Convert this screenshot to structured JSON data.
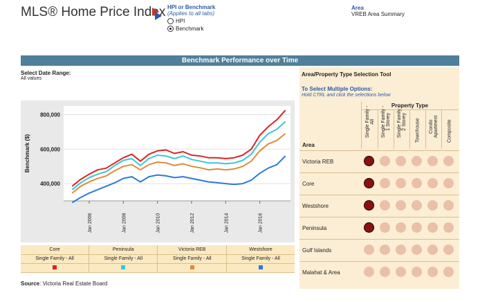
{
  "header": {
    "title": "MLS® Home Price Index",
    "hpi_label": "HPI or Benchmark",
    "hpi_sub": "(Applies to all tabs)",
    "options": [
      {
        "label": "HPI",
        "selected": false
      },
      {
        "label": "Benchmark",
        "selected": true
      }
    ],
    "area_label": "Area",
    "area_value": "VREB Area Summary"
  },
  "banner": "Benchmark Performance over Time",
  "date_range": {
    "label": "Select Date Range:",
    "value": "All values"
  },
  "chart_data": {
    "type": "line",
    "ylabel": "Benchmark ($)",
    "yticks": [
      "400,000",
      "600,000",
      "800,000"
    ],
    "ylim": [
      300000,
      850000
    ],
    "xticks": [
      "Jan 2006",
      "Jan 2008",
      "Jan 2010",
      "Jan 2012",
      "Jan 2014",
      "Jan 2016"
    ],
    "xlim": [
      2004.5,
      2017.8
    ],
    "x": [
      2005.0,
      2005.5,
      2006.0,
      2006.5,
      2007.0,
      2007.5,
      2008.0,
      2008.5,
      2009.0,
      2009.5,
      2010.0,
      2010.5,
      2011.0,
      2011.5,
      2012.0,
      2012.5,
      2013.0,
      2013.5,
      2014.0,
      2014.5,
      2015.0,
      2015.5,
      2016.0,
      2016.5,
      2017.0,
      2017.5
    ],
    "series": [
      {
        "name": "Core",
        "subtitle": "Single Family - All",
        "color": "#e02020",
        "values": [
          385000,
          425000,
          455000,
          480000,
          490000,
          520000,
          550000,
          570000,
          530000,
          570000,
          590000,
          595000,
          575000,
          585000,
          565000,
          560000,
          550000,
          550000,
          545000,
          550000,
          565000,
          600000,
          680000,
          730000,
          770000,
          825000
        ]
      },
      {
        "name": "Peninsula",
        "subtitle": "Single Family - All",
        "color": "#36c8d8",
        "values": [
          365000,
          405000,
          435000,
          455000,
          470000,
          505000,
          535000,
          545000,
          505000,
          545000,
          565000,
          560000,
          545000,
          560000,
          540000,
          530000,
          520000,
          520000,
          515000,
          520000,
          535000,
          570000,
          640000,
          690000,
          715000,
          760000
        ]
      },
      {
        "name": "Victoria REB",
        "subtitle": "Single Family - All",
        "color": "#e08a3a",
        "values": [
          345000,
          385000,
          410000,
          430000,
          445000,
          475000,
          500000,
          510000,
          480000,
          510000,
          525000,
          520000,
          505000,
          515000,
          500000,
          492000,
          480000,
          485000,
          480000,
          485000,
          500000,
          530000,
          590000,
          630000,
          650000,
          690000
        ]
      },
      {
        "name": "Westshore",
        "subtitle": "Single Family - All",
        "color": "#2a7ad8",
        "values": [
          290000,
          320000,
          345000,
          365000,
          385000,
          405000,
          430000,
          440000,
          410000,
          440000,
          450000,
          445000,
          435000,
          440000,
          430000,
          420000,
          410000,
          405000,
          400000,
          395000,
          400000,
          420000,
          460000,
          490000,
          510000,
          560000
        ]
      }
    ]
  },
  "legend": [
    {
      "name": "Core",
      "subtitle": "Single Family - All",
      "color": "#e02020"
    },
    {
      "name": "Peninsula",
      "subtitle": "Single Family - All",
      "color": "#36c8d8"
    },
    {
      "name": "Victoria REB",
      "subtitle": "Single Family - All",
      "color": "#e08a3a"
    },
    {
      "name": "Westshore",
      "subtitle": "Single Family - All",
      "color": "#2a7ad8"
    }
  ],
  "source": {
    "label": "Source",
    "text": ": Victoria Real Estate Board"
  },
  "tool": {
    "title": "Area/Property Type Selection Tool",
    "subtitle": "To Select Multiple Options:",
    "hint": "Hold CTRL and click the selections below",
    "property_type_label": "Property Type",
    "area_label": "Area",
    "columns": [
      "Single Family -\nAll",
      "Single Family -\n1 Storey",
      "Single Family -\n2 Storey",
      "Townhouse",
      "Condo\nApartment",
      "Composite"
    ],
    "rows": [
      {
        "label": "Victoria REB",
        "cells": [
          true,
          false,
          false,
          false,
          false,
          false
        ]
      },
      {
        "label": "Core",
        "cells": [
          true,
          false,
          false,
          false,
          false,
          false
        ]
      },
      {
        "label": "Westshore",
        "cells": [
          true,
          false,
          false,
          false,
          false,
          false
        ]
      },
      {
        "label": "Peninsula",
        "cells": [
          true,
          false,
          false,
          false,
          false,
          false
        ]
      },
      {
        "label": "Gulf Islands",
        "cells": [
          false,
          false,
          false,
          false,
          false,
          false
        ]
      },
      {
        "label": "Malahat & Area",
        "cells": [
          false,
          false,
          false,
          false,
          false,
          false
        ]
      }
    ]
  }
}
